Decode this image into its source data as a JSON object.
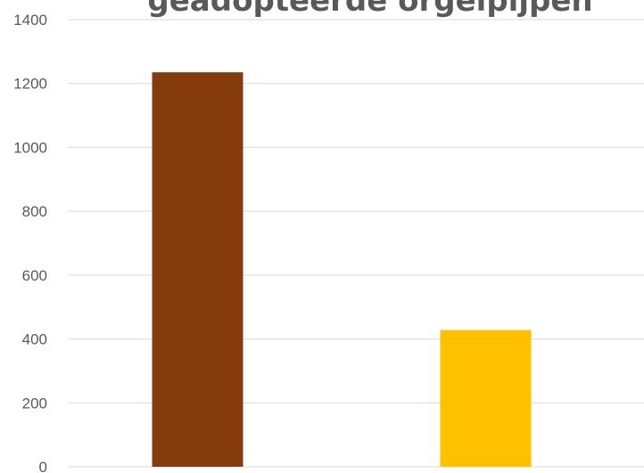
{
  "chart_data": {
    "type": "bar",
    "title": "geadopteerde orgelpijpen",
    "xlabel": "",
    "ylabel": "",
    "categories": [
      "",
      ""
    ],
    "values": [
      1235,
      428
    ],
    "colors": [
      "#843c0c",
      "#ffc000"
    ],
    "ylim": [
      0,
      1400
    ],
    "yticks": [
      0,
      200,
      400,
      600,
      800,
      1000,
      1200,
      1400
    ],
    "grid": true,
    "legend": "none"
  }
}
